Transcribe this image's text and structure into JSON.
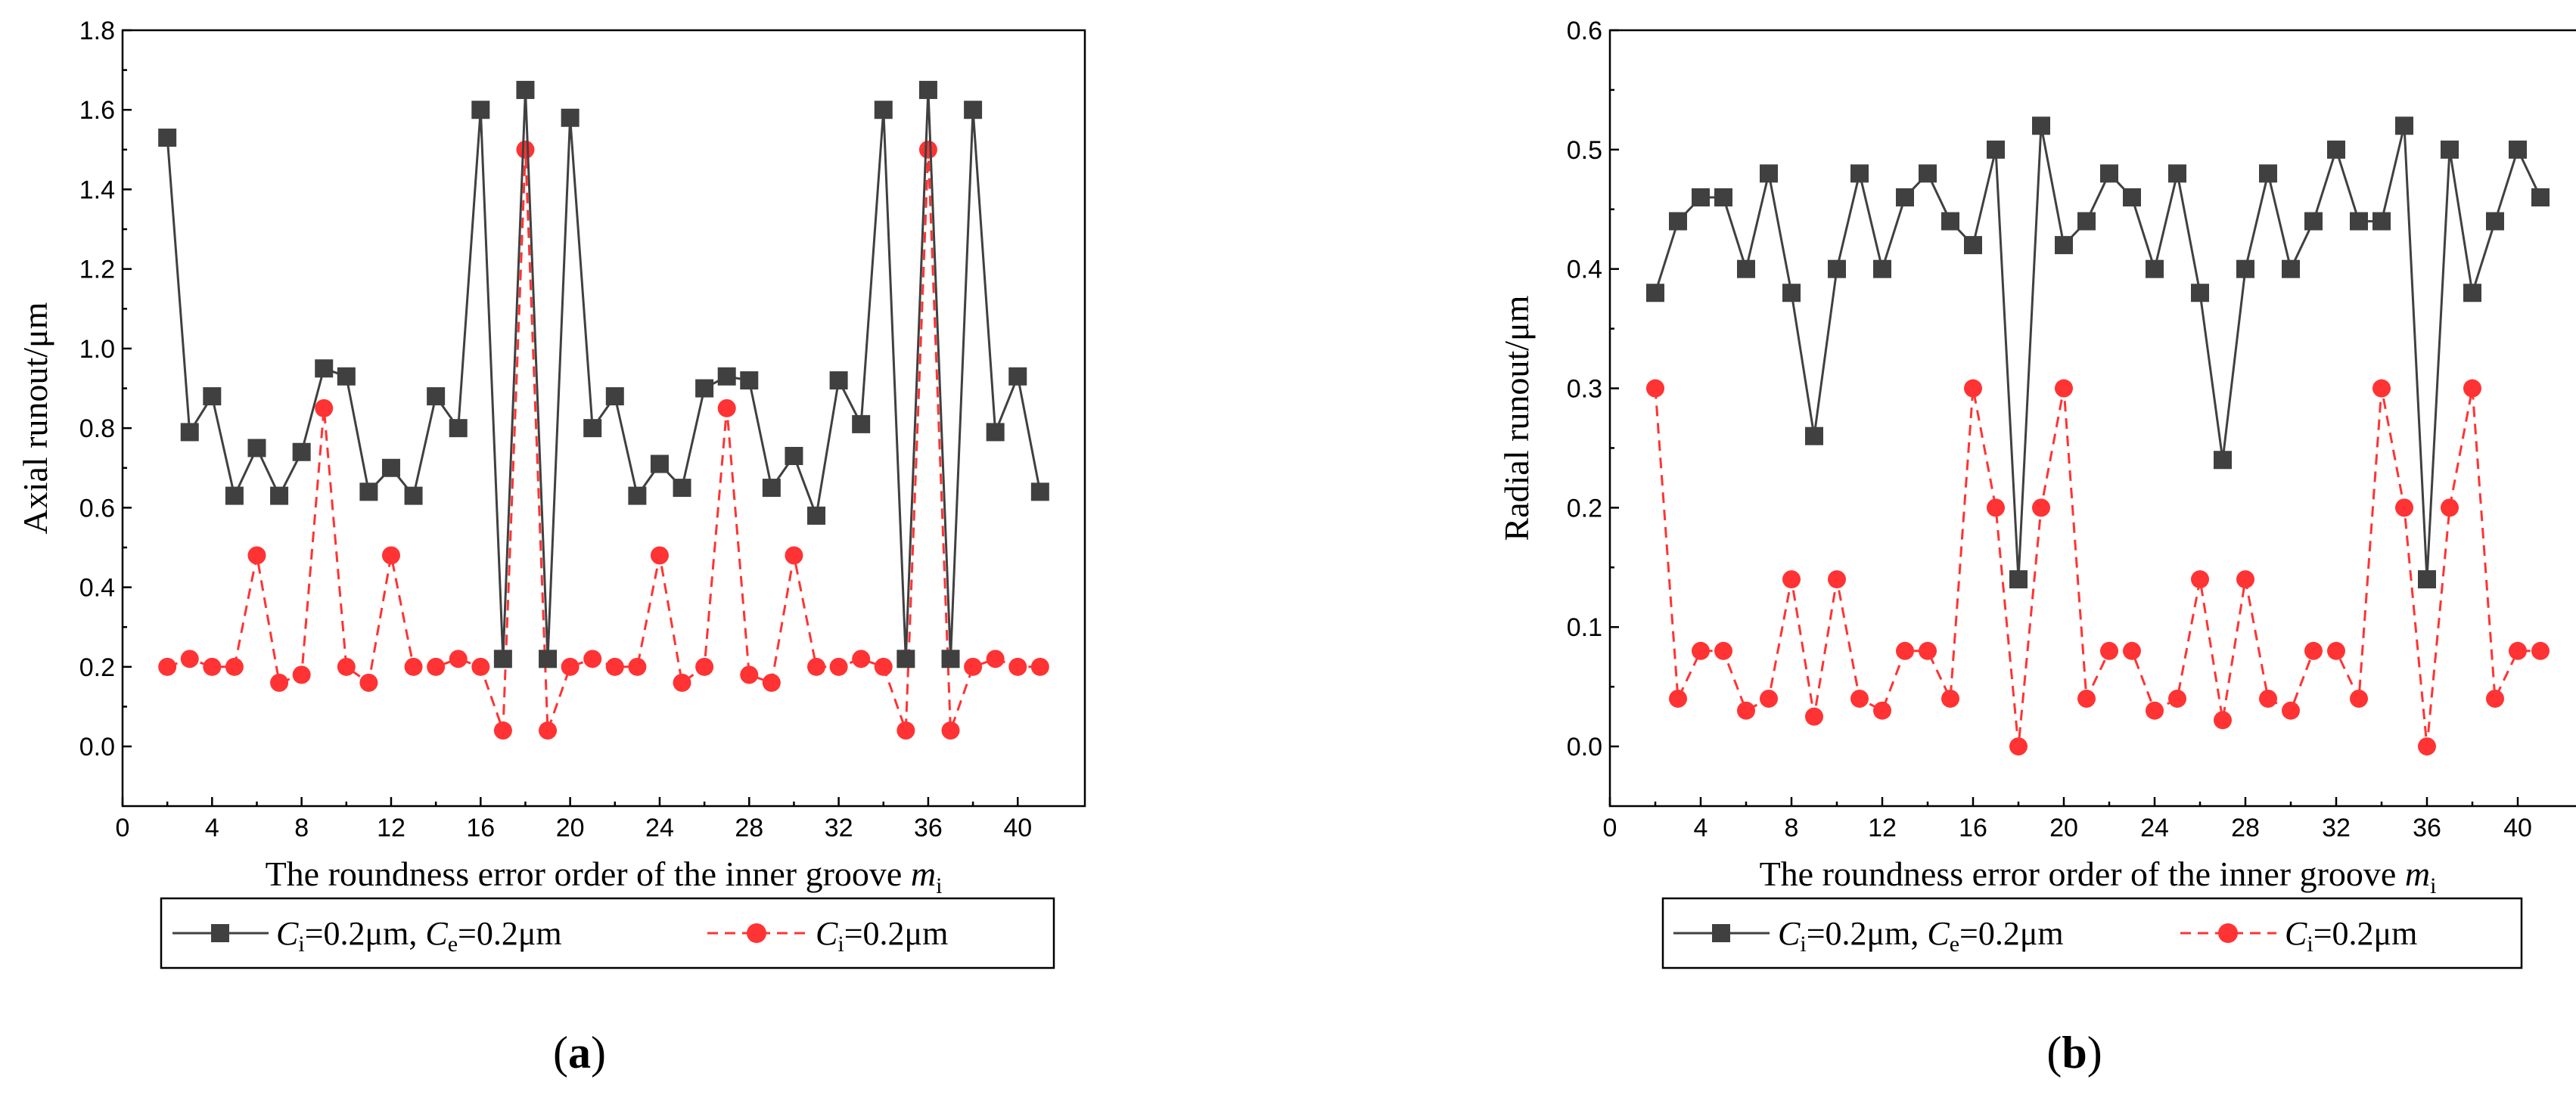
{
  "chart_data": [
    {
      "panel_label_open": "(",
      "panel_label": "a",
      "panel_label_close": ")",
      "type": "line",
      "title": "",
      "xlabel": "The roundness error order of the inner groove ",
      "xlabel_var": "m",
      "xlabel_sub": "i",
      "ylabel": "Axial runout/μm",
      "xlim": [
        0,
        43
      ],
      "ylim": [
        -0.15,
        1.8
      ],
      "xticks": [
        0,
        4,
        8,
        12,
        16,
        20,
        24,
        28,
        32,
        36,
        40
      ],
      "yticks": [
        0.0,
        0.2,
        0.4,
        0.6,
        0.8,
        1.0,
        1.2,
        1.4,
        1.6,
        1.8
      ],
      "ytick_labels": [
        "0.0",
        "0.2",
        "0.4",
        "0.6",
        "0.8",
        "1.0",
        "1.2",
        "1.4",
        "1.6",
        "1.8"
      ],
      "x": [
        2,
        3,
        4,
        5,
        6,
        7,
        8,
        9,
        10,
        11,
        12,
        13,
        14,
        15,
        16,
        17,
        18,
        19,
        20,
        21,
        22,
        23,
        24,
        25,
        26,
        27,
        28,
        29,
        30,
        31,
        32,
        33,
        34,
        35,
        36,
        37,
        38,
        39,
        40,
        41
      ],
      "series": [
        {
          "name": "Ci=0.2μm, Ce=0.2μm",
          "color": "#404040",
          "marker": "square",
          "linestyle": "solid",
          "values": [
            1.53,
            0.79,
            0.88,
            0.63,
            0.75,
            0.63,
            0.74,
            0.95,
            0.93,
            0.64,
            0.7,
            0.63,
            0.88,
            0.8,
            1.6,
            0.22,
            1.65,
            0.22,
            1.58,
            0.8,
            0.88,
            0.63,
            0.71,
            0.65,
            0.9,
            0.93,
            0.92,
            0.65,
            0.73,
            0.58,
            0.92,
            0.81,
            1.6,
            0.22,
            1.65,
            0.22,
            1.6,
            0.79,
            0.93,
            0.64
          ]
        },
        {
          "name": "Ci=0.2μm",
          "color": "#ff3333",
          "marker": "circle",
          "linestyle": "dashed",
          "values": [
            0.2,
            0.22,
            0.2,
            0.2,
            0.48,
            0.16,
            0.18,
            0.85,
            0.2,
            0.16,
            0.48,
            0.2,
            0.2,
            0.22,
            0.2,
            0.04,
            1.5,
            0.04,
            0.2,
            0.22,
            0.2,
            0.2,
            0.48,
            0.16,
            0.2,
            0.85,
            0.18,
            0.16,
            0.48,
            0.2,
            0.2,
            0.22,
            0.2,
            0.04,
            1.5,
            0.04,
            0.2,
            0.22,
            0.2,
            0.2
          ]
        }
      ],
      "legend": [
        {
          "c1": "C",
          "s1": "i",
          "t1": "=0.2μm, ",
          "c2": "C",
          "s2": "e",
          "t2": "=0.2μm"
        },
        {
          "c1": "C",
          "s1": "i",
          "t1": "=0.2μm"
        }
      ]
    },
    {
      "panel_label_open": "(",
      "panel_label": "b",
      "panel_label_close": ")",
      "type": "line",
      "title": "",
      "xlabel": "The roundness error order of the inner groove ",
      "xlabel_var": "m",
      "xlabel_sub": "i",
      "ylabel": "Radial runout/μm",
      "xlim": [
        0,
        43
      ],
      "ylim": [
        -0.05,
        0.6
      ],
      "xticks": [
        0,
        4,
        8,
        12,
        16,
        20,
        24,
        28,
        32,
        36,
        40
      ],
      "yticks": [
        0.0,
        0.1,
        0.2,
        0.3,
        0.4,
        0.5,
        0.6
      ],
      "ytick_labels": [
        "0.0",
        "0.1",
        "0.2",
        "0.3",
        "0.4",
        "0.5",
        "0.6"
      ],
      "x": [
        2,
        3,
        4,
        5,
        6,
        7,
        8,
        9,
        10,
        11,
        12,
        13,
        14,
        15,
        16,
        17,
        18,
        19,
        20,
        21,
        22,
        23,
        24,
        25,
        26,
        27,
        28,
        29,
        30,
        31,
        32,
        33,
        34,
        35,
        36,
        37,
        38,
        39,
        40,
        41
      ],
      "series": [
        {
          "name": "Ci=0.2μm, Ce=0.2μm",
          "color": "#404040",
          "marker": "square",
          "linestyle": "solid",
          "values": [
            0.38,
            0.44,
            0.46,
            0.46,
            0.4,
            0.48,
            0.38,
            0.26,
            0.4,
            0.48,
            0.4,
            0.46,
            0.48,
            0.44,
            0.42,
            0.5,
            0.14,
            0.52,
            0.42,
            0.44,
            0.48,
            0.46,
            0.4,
            0.48,
            0.38,
            0.24,
            0.4,
            0.48,
            0.4,
            0.44,
            0.5,
            0.44,
            0.44,
            0.52,
            0.14,
            0.5,
            0.38,
            0.44,
            0.5,
            0.46
          ]
        },
        {
          "name": "Ci=0.2μm",
          "color": "#ff3333",
          "marker": "circle",
          "linestyle": "dashed",
          "values": [
            0.3,
            0.04,
            0.08,
            0.08,
            0.03,
            0.04,
            0.14,
            0.025,
            0.14,
            0.04,
            0.03,
            0.08,
            0.08,
            0.04,
            0.3,
            0.2,
            0.0,
            0.2,
            0.3,
            0.04,
            0.08,
            0.08,
            0.03,
            0.04,
            0.14,
            0.022,
            0.14,
            0.04,
            0.03,
            0.08,
            0.08,
            0.04,
            0.3,
            0.2,
            0.0,
            0.2,
            0.3,
            0.04,
            0.08,
            0.08
          ]
        }
      ],
      "legend": [
        {
          "c1": "C",
          "s1": "i",
          "t1": "=0.2μm, ",
          "c2": "C",
          "s2": "e",
          "t2": "=0.2μm"
        },
        {
          "c1": "C",
          "s1": "i",
          "t1": "=0.2μm"
        }
      ]
    }
  ]
}
